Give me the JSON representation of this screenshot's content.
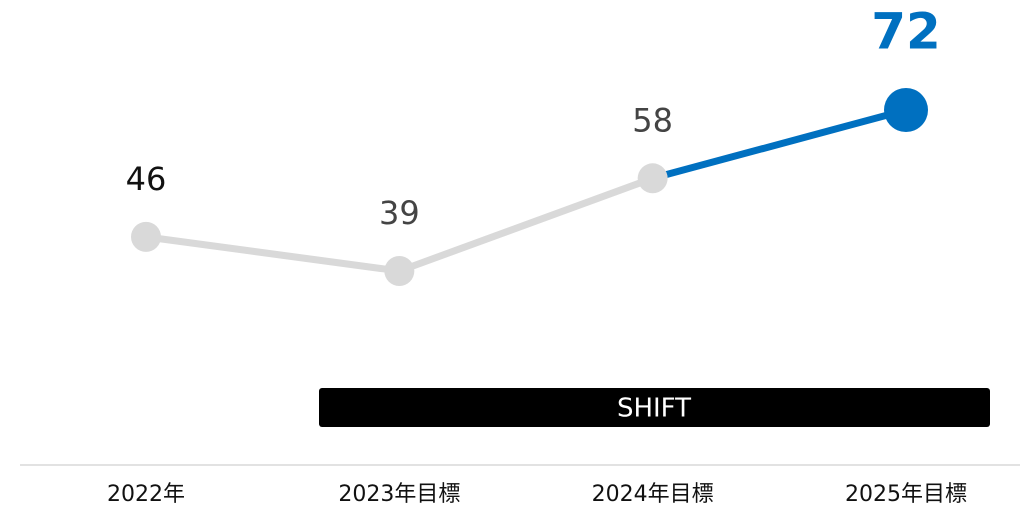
{
  "chart_data": {
    "type": "line",
    "categories": [
      "2022年",
      "2023年目標",
      "2024年目標",
      "2025年目標"
    ],
    "values": [
      46,
      39,
      58,
      72
    ],
    "color": "#d9d9d9",
    "highlight_color": "#0070c0",
    "annotation": "SHIFT"
  }
}
